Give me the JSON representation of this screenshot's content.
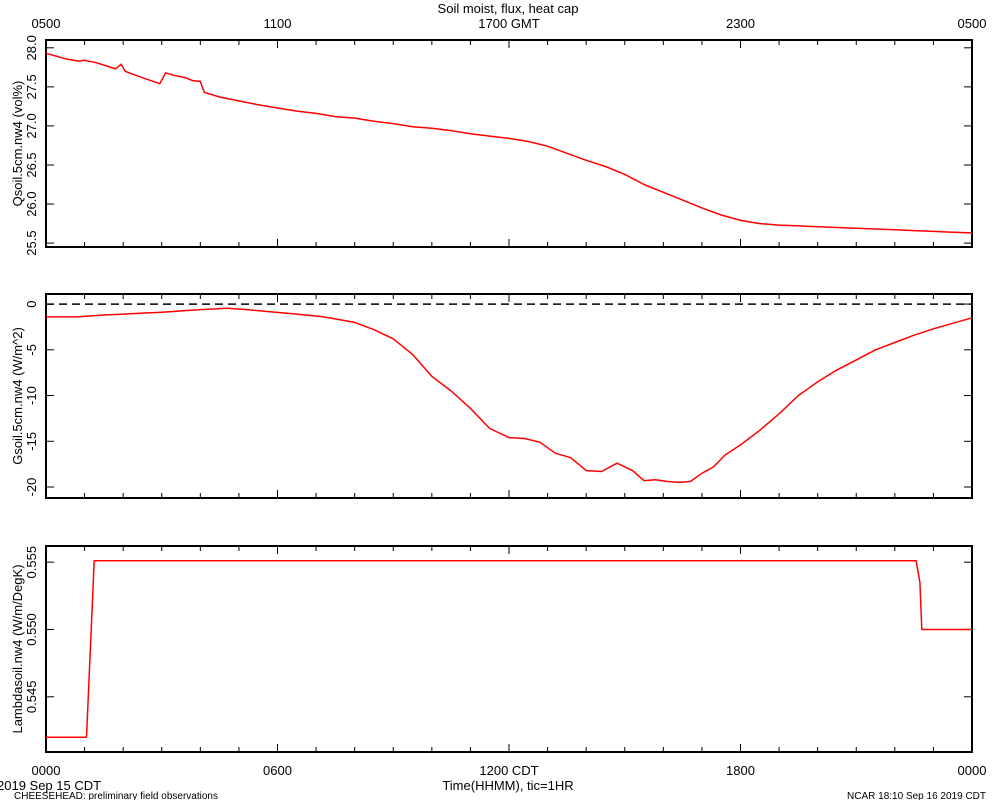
{
  "title": "Soil moist, flux, heat cap",
  "top_axis": {
    "ticks": [
      "0500",
      "1100",
      "1700 GMT",
      "2300",
      "0500"
    ]
  },
  "bottom_axis": {
    "ticks": [
      "0000",
      "0600",
      "1200 CDT",
      "1800",
      "0000"
    ],
    "label": "Time(HHMM), tic=1HR"
  },
  "footer": {
    "left_date": "2019 Sep 15 CDT",
    "left_note": "CHEESEHEAD: preliminary field observations",
    "right_note": "NCAR 18:10 Sep 16 2019 CDT"
  },
  "colors": {
    "series": "#ff0000",
    "axis": "#000000",
    "zero_line": "#000000"
  },
  "chart_data": [
    {
      "type": "line",
      "ylabel": "Qsoil.5cm.nw4 (vol%)",
      "xlim": [
        0,
        24
      ],
      "ylim": [
        25.45,
        28.1
      ],
      "yticks": [
        25.5,
        26.0,
        26.5,
        27.0,
        27.5,
        28.0
      ],
      "ytick_labels": [
        "25.5",
        "26.0",
        "26.5",
        "27.0",
        "27.5",
        "28.0"
      ],
      "grid": false,
      "series": [
        {
          "x": [
            0,
            0.5,
            0.85,
            1.0,
            1.3,
            1.8,
            1.95,
            2.05,
            2.2,
            2.6,
            2.95,
            3.1,
            3.3,
            3.6,
            3.8,
            4.0,
            4.1,
            4.5,
            5.0,
            5.5,
            6.0,
            6.5,
            7.0,
            7.5,
            8.0,
            8.5,
            9.0,
            9.5,
            10.0,
            10.5,
            11.0,
            11.5,
            12.0,
            12.5,
            13.0,
            13.5,
            14.0,
            14.5,
            15.0,
            15.5,
            16.0,
            16.5,
            17.0,
            17.5,
            18.0,
            18.5,
            19.0,
            19.5,
            20.0,
            20.5,
            21.0,
            21.5,
            22.0,
            22.5,
            23.0,
            23.5,
            24.0
          ],
          "y": [
            27.93,
            27.86,
            27.83,
            27.84,
            27.81,
            27.73,
            27.79,
            27.7,
            27.67,
            27.6,
            27.54,
            27.68,
            27.65,
            27.62,
            27.58,
            27.57,
            27.43,
            27.37,
            27.32,
            27.27,
            27.23,
            27.19,
            27.16,
            27.12,
            27.1,
            27.06,
            27.03,
            26.99,
            26.97,
            26.94,
            26.9,
            26.87,
            26.84,
            26.8,
            26.74,
            26.65,
            26.56,
            26.48,
            26.38,
            26.25,
            26.15,
            26.05,
            25.95,
            25.86,
            25.79,
            25.75,
            25.73,
            25.72,
            25.71,
            25.7,
            25.69,
            25.68,
            25.67,
            25.66,
            25.65,
            25.64,
            25.63
          ]
        }
      ]
    },
    {
      "type": "line",
      "ylabel": "Gsoil.5cm.nw4 (W/m^2)",
      "xlim": [
        0,
        24
      ],
      "ylim": [
        -21.2,
        1.1
      ],
      "yticks": [
        -20,
        -15,
        -10,
        -5,
        0
      ],
      "ytick_labels": [
        "-20",
        "-15",
        "-10",
        "-5",
        "0"
      ],
      "zero_line": true,
      "grid": false,
      "series": [
        {
          "x": [
            0,
            0.8,
            1.5,
            2.0,
            3.0,
            4.0,
            4.7,
            5.2,
            5.7,
            6.5,
            7.2,
            8.0,
            8.5,
            9.0,
            9.5,
            10.0,
            10.5,
            11.0,
            11.5,
            12.0,
            12.4,
            12.8,
            13.2,
            13.6,
            14.0,
            14.4,
            14.8,
            15.2,
            15.5,
            15.8,
            16.1,
            16.4,
            16.7,
            17.0,
            17.3,
            17.6,
            18.0,
            18.5,
            19.0,
            19.5,
            20.0,
            20.5,
            21.0,
            21.5,
            22.0,
            22.5,
            23.0,
            23.5,
            24.0
          ],
          "y": [
            -1.4,
            -1.4,
            -1.2,
            -1.1,
            -0.9,
            -0.6,
            -0.45,
            -0.6,
            -0.8,
            -1.1,
            -1.4,
            -2.0,
            -2.8,
            -3.8,
            -5.5,
            -7.9,
            -9.5,
            -11.4,
            -13.6,
            -14.6,
            -14.7,
            -15.1,
            -16.3,
            -16.8,
            -18.2,
            -18.3,
            -17.4,
            -18.2,
            -19.3,
            -19.2,
            -19.4,
            -19.5,
            -19.4,
            -18.5,
            -17.8,
            -16.5,
            -15.4,
            -13.8,
            -12.0,
            -10.0,
            -8.5,
            -7.2,
            -6.1,
            -5.0,
            -4.2,
            -3.4,
            -2.7,
            -2.1,
            -1.5
          ]
        }
      ]
    },
    {
      "type": "line",
      "ylabel": "Lambdasoil.nw4 (W/m/DegK)",
      "xlim": [
        0,
        24
      ],
      "ylim": [
        0.5409,
        0.5562
      ],
      "yticks": [
        0.545,
        0.55,
        0.555
      ],
      "ytick_labels": [
        "0.545",
        "0.550",
        "0.555"
      ],
      "grid": false,
      "series": [
        {
          "x": [
            0,
            1.05,
            1.25,
            22.55,
            22.65,
            22.7,
            24.0
          ],
          "y": [
            0.542,
            0.542,
            0.5551,
            0.5551,
            0.5535,
            0.55,
            0.55
          ]
        }
      ]
    }
  ]
}
